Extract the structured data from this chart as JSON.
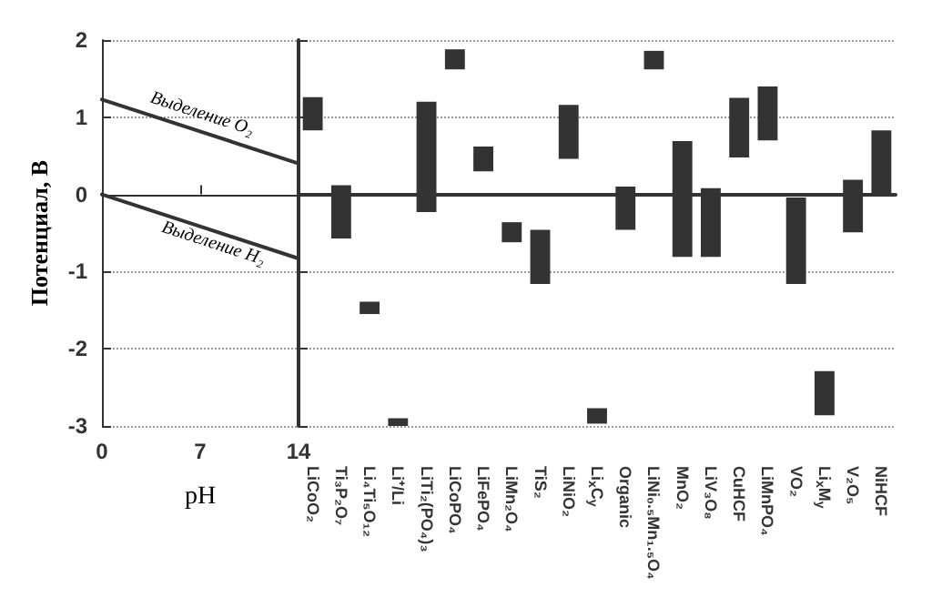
{
  "chart_data": [
    {
      "type": "line",
      "xlabel": "pH",
      "ylabel": "Потенциал, В",
      "xlim": [
        0,
        14
      ],
      "xticks": [
        0,
        7,
        14
      ],
      "ylim": [
        -3,
        2
      ],
      "yticks": [
        -3,
        -2,
        -1,
        0,
        1,
        2
      ],
      "grid": "y",
      "marker": "none",
      "line_style": "solid",
      "x": [
        0,
        14
      ],
      "series": [
        {
          "color": "#333333",
          "values": [
            1.23,
            0.4
          ]
        },
        {
          "color": "#333333",
          "values": [
            0,
            -0.83
          ]
        }
      ],
      "annotations": [
        "Выделение O₂",
        "Выделение H₂"
      ]
    },
    {
      "type": "bar",
      "categories": [
        "LiCoO₂",
        "Ti₃P₂O₇",
        "Li₄Ti₅O₁₂",
        "Li⁺/Li",
        "LiTi₂(PO₄)₃",
        "LiCoPO₄",
        "LiFePO₄",
        "LiMn₂O₄",
        "TiS₂",
        "LiNiO₂",
        "Li$_{x}$C$_{y}$",
        "Organic",
        "LiNi₀.₅Mn₁.₅O₄",
        "MnO₂",
        "LiV₃O₈",
        "CuHCF",
        "LiMnPO₄",
        "VO₂",
        "Li$_{x}$M$_{y}$",
        "V₂O₅",
        "NiHCF"
      ],
      "base": [
        0.83,
        -0.57,
        -1.55,
        -3.0,
        -0.23,
        1.62,
        0.3,
        -0.62,
        -1.16,
        0.46,
        -2.97,
        -0.46,
        1.62,
        -0.81,
        -0.81,
        0.48,
        0.7,
        -1.16,
        -2.86,
        -0.49,
        0.0
      ],
      "values": [
        0.43,
        0.69,
        0.16,
        0.1,
        1.43,
        0.26,
        0.32,
        0.26,
        0.7,
        0.7,
        0.2,
        0.56,
        0.24,
        1.5,
        0.89,
        0.77,
        0.7,
        1.12,
        0.57,
        0.68,
        0.83
      ],
      "color": "#333333",
      "ylim": [
        -3,
        2
      ],
      "yticks": [
        -3,
        -2,
        -1,
        0,
        1,
        2
      ],
      "grid": "y",
      "tick_labels": "x"
    }
  ]
}
